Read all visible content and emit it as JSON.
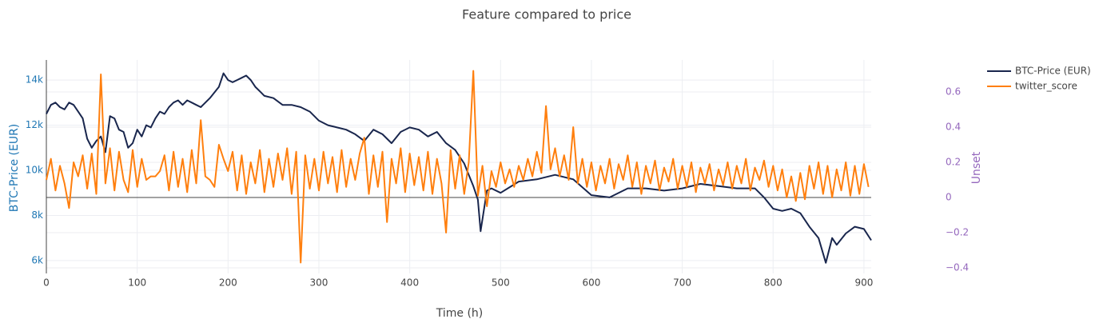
{
  "chart_data": {
    "type": "line",
    "title": "Feature compared to price",
    "x_label": "Time (h)",
    "y_label": "BTC-Price (EUR)",
    "y2_label": "Unset",
    "xlim": [
      0,
      908
    ],
    "xticks": [
      0,
      100,
      200,
      300,
      400,
      500,
      600,
      700,
      800,
      900
    ],
    "ylim": [
      5430,
      14890
    ],
    "yticks": [
      {
        "value": 6000,
        "label": "6k"
      },
      {
        "value": 8000,
        "label": "8k"
      },
      {
        "value": 10000,
        "label": "10k"
      },
      {
        "value": 12000,
        "label": "12k"
      },
      {
        "value": 14000,
        "label": "14k"
      }
    ],
    "y2lim": [
      -0.432,
      0.782
    ],
    "y2ticks": [
      {
        "value": -0.4,
        "label": "−0.4"
      },
      {
        "value": -0.2,
        "label": "−0.2"
      },
      0,
      0.2,
      0.4,
      0.6
    ],
    "grid": true,
    "legend": "top-right",
    "series": [
      {
        "name": "BTC-Price (EUR)",
        "color": "#19264d",
        "x": [
          0,
          5,
          10,
          15,
          20,
          25,
          30,
          35,
          40,
          45,
          50,
          55,
          60,
          65,
          70,
          75,
          80,
          85,
          90,
          95,
          100,
          105,
          110,
          115,
          120,
          125,
          130,
          135,
          140,
          145,
          150,
          155,
          160,
          165,
          170,
          180,
          190,
          195,
          200,
          205,
          210,
          215,
          220,
          225,
          230,
          235,
          240,
          250,
          260,
          270,
          280,
          290,
          300,
          310,
          320,
          330,
          340,
          350,
          360,
          370,
          380,
          390,
          400,
          410,
          420,
          430,
          440,
          450,
          460,
          465,
          470,
          475,
          478,
          485,
          490,
          500,
          520,
          540,
          560,
          580,
          600,
          620,
          640,
          660,
          680,
          700,
          720,
          740,
          760,
          780,
          790,
          800,
          810,
          820,
          830,
          840,
          850,
          858,
          865,
          870,
          880,
          890,
          900,
          908
        ],
        "values": [
          12500,
          12900,
          13000,
          12800,
          12700,
          13000,
          12900,
          12600,
          12300,
          11400,
          11000,
          11300,
          11500,
          10800,
          12400,
          12300,
          11800,
          11700,
          11000,
          11200,
          11800,
          11500,
          12000,
          11900,
          12300,
          12600,
          12500,
          12800,
          13000,
          13100,
          12900,
          13100,
          13000,
          12900,
          12800,
          13200,
          13700,
          14300,
          14000,
          13900,
          14000,
          14100,
          14200,
          14000,
          13700,
          13500,
          13300,
          13200,
          12900,
          12900,
          12800,
          12600,
          12200,
          12000,
          11900,
          11800,
          11600,
          11300,
          11800,
          11600,
          11200,
          11700,
          11900,
          11800,
          11500,
          11700,
          11200,
          10900,
          10300,
          9800,
          9300,
          8700,
          7300,
          9100,
          9200,
          9000,
          9500,
          9600,
          9800,
          9600,
          8900,
          8800,
          9200,
          9200,
          9100,
          9200,
          9400,
          9300,
          9200,
          9200,
          8800,
          8300,
          8200,
          8300,
          8100,
          7500,
          7000,
          5900,
          7000,
          6700,
          7200,
          7500,
          7400,
          6900
        ]
      },
      {
        "name": "twitter_score",
        "color": "#ff7f0e",
        "axis": "y2",
        "x": [
          0,
          5,
          10,
          15,
          20,
          25,
          30,
          35,
          40,
          45,
          50,
          55,
          60,
          65,
          70,
          75,
          80,
          85,
          90,
          95,
          100,
          105,
          110,
          115,
          120,
          125,
          130,
          135,
          140,
          145,
          150,
          155,
          160,
          165,
          170,
          175,
          180,
          185,
          190,
          195,
          200,
          205,
          210,
          215,
          220,
          225,
          230,
          235,
          240,
          245,
          250,
          255,
          260,
          265,
          270,
          275,
          280,
          285,
          290,
          295,
          300,
          305,
          310,
          315,
          320,
          325,
          330,
          335,
          340,
          345,
          350,
          355,
          360,
          365,
          370,
          375,
          380,
          385,
          390,
          395,
          400,
          405,
          410,
          415,
          420,
          425,
          430,
          435,
          440,
          445,
          450,
          455,
          460,
          465,
          470,
          475,
          480,
          485,
          490,
          495,
          500,
          505,
          510,
          515,
          520,
          525,
          530,
          535,
          540,
          545,
          550,
          555,
          560,
          565,
          570,
          575,
          580,
          585,
          590,
          595,
          600,
          605,
          610,
          615,
          620,
          625,
          630,
          635,
          640,
          645,
          650,
          655,
          660,
          665,
          670,
          675,
          680,
          685,
          690,
          695,
          700,
          705,
          710,
          715,
          720,
          725,
          730,
          735,
          740,
          745,
          750,
          755,
          760,
          765,
          770,
          775,
          780,
          785,
          790,
          795,
          800,
          805,
          810,
          815,
          820,
          825,
          830,
          835,
          840,
          845,
          850,
          855,
          860,
          865,
          870,
          875,
          880,
          885,
          890,
          895,
          900,
          905
        ],
        "values": [
          0.1,
          0.22,
          0.04,
          0.18,
          0.08,
          -0.06,
          0.2,
          0.12,
          0.24,
          0.05,
          0.25,
          0.02,
          0.7,
          0.08,
          0.28,
          0.04,
          0.26,
          0.1,
          0.03,
          0.27,
          0.06,
          0.22,
          0.1,
          0.12,
          0.12,
          0.15,
          0.24,
          0.04,
          0.26,
          0.06,
          0.22,
          0.03,
          0.27,
          0.08,
          0.44,
          0.12,
          0.1,
          0.06,
          0.3,
          0.22,
          0.15,
          0.26,
          0.04,
          0.24,
          0.02,
          0.2,
          0.08,
          0.27,
          0.03,
          0.22,
          0.06,
          0.25,
          0.1,
          0.28,
          0.02,
          0.26,
          -0.37,
          0.24,
          0.05,
          0.22,
          0.04,
          0.26,
          0.08,
          0.23,
          0.03,
          0.27,
          0.06,
          0.22,
          0.1,
          0.25,
          0.34,
          0.02,
          0.24,
          0.06,
          0.26,
          -0.14,
          0.22,
          0.08,
          0.28,
          0.03,
          0.25,
          0.07,
          0.23,
          0.04,
          0.26,
          0.02,
          0.22,
          0.08,
          -0.2,
          0.27,
          0.05,
          0.24,
          0.02,
          0.2,
          0.72,
          0.01,
          0.18,
          -0.05,
          0.15,
          0.06,
          0.2,
          0.08,
          0.16,
          0.06,
          0.18,
          0.1,
          0.22,
          0.12,
          0.26,
          0.14,
          0.52,
          0.16,
          0.28,
          0.12,
          0.24,
          0.1,
          0.4,
          0.08,
          0.22,
          0.06,
          0.2,
          0.04,
          0.18,
          0.08,
          0.22,
          0.05,
          0.19,
          0.1,
          0.24,
          0.06,
          0.2,
          0.02,
          0.18,
          0.08,
          0.21,
          0.04,
          0.17,
          0.09,
          0.22,
          0.05,
          0.18,
          0.06,
          0.2,
          0.03,
          0.17,
          0.08,
          0.19,
          0.04,
          0.16,
          0.07,
          0.2,
          0.05,
          0.18,
          0.08,
          0.22,
          0.04,
          0.17,
          0.1,
          0.21,
          0.06,
          0.18,
          0.04,
          0.16,
          0.0,
          0.12,
          -0.02,
          0.14,
          -0.01,
          0.18,
          0.05,
          0.2,
          0.02,
          0.18,
          0.0,
          0.16,
          0.04,
          0.2,
          0.01,
          0.18,
          0.02,
          0.19,
          0.06
        ]
      }
    ]
  }
}
